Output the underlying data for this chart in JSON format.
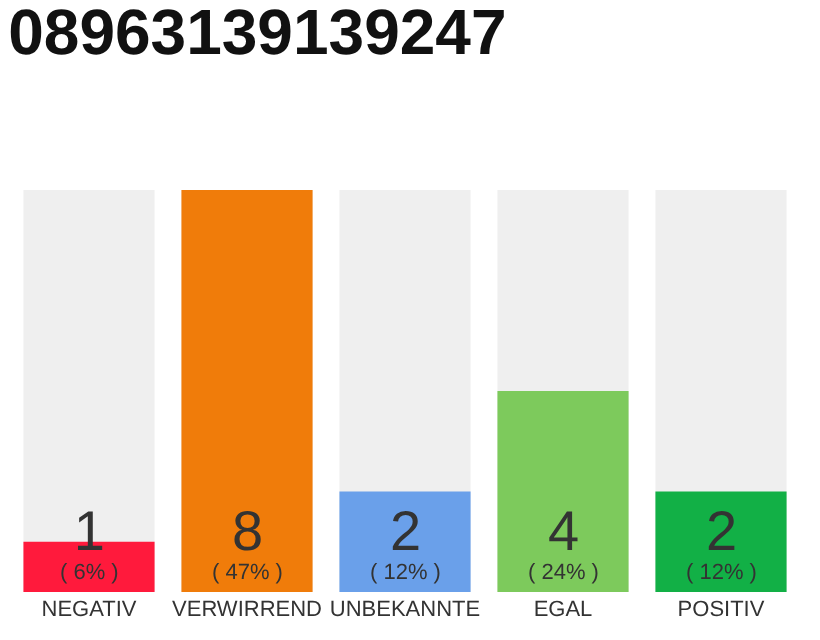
{
  "chart_data": {
    "type": "bar",
    "title": "08963139139247",
    "categories": [
      "NEGATIV",
      "VERWIRREND",
      "UNBEKANNTE",
      "EGAL",
      "POSITIV"
    ],
    "values": [
      1,
      8,
      2,
      4,
      2
    ],
    "colors": [
      "#ff1a3c",
      "#f07c0a",
      "#6aa0ea",
      "#7dca5c",
      "#12b046"
    ],
    "value_labels": [
      "1\n( 6% )",
      "8\n( 47% )",
      "2\n( 12% )",
      "4\n( 24% )",
      "2\n( 12% )"
    ],
    "ylim": [
      0,
      8
    ],
    "grid": false,
    "legend": false
  }
}
